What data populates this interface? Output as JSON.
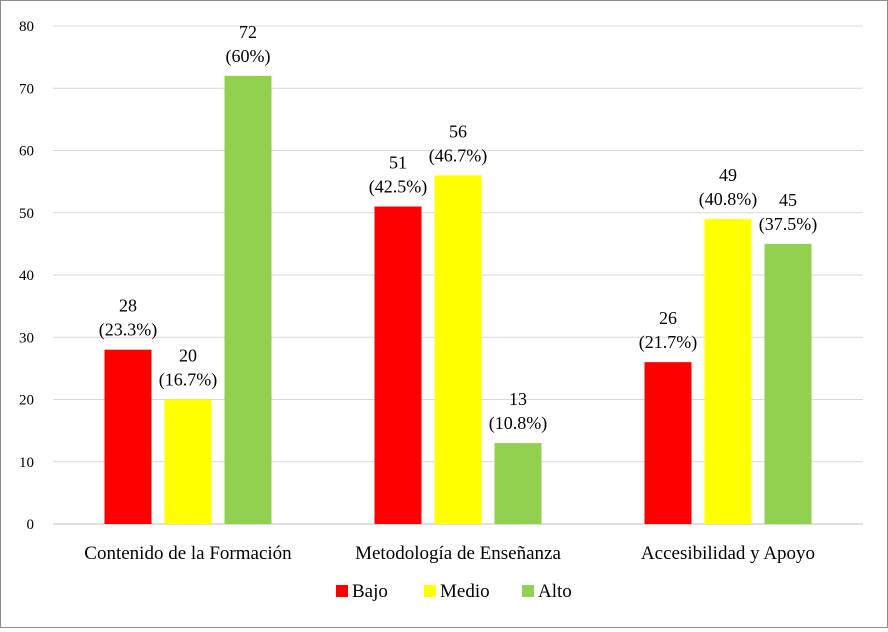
{
  "chart_data": {
    "type": "bar",
    "categories": [
      "Contenido de la Formación",
      "Metodología de Enseñanza",
      "Accesibilidad y Apoyo"
    ],
    "series": [
      {
        "name": "Bajo",
        "color": "#ff0000",
        "values": [
          28,
          51,
          26
        ],
        "labels": [
          "28",
          "51",
          "26"
        ],
        "percent_labels": [
          "(23.3%)",
          "(42.5%)",
          "(21.7%)"
        ]
      },
      {
        "name": "Medio",
        "color": "#ffff00",
        "values": [
          20,
          56,
          49
        ],
        "labels": [
          "20",
          "56",
          "49"
        ],
        "percent_labels": [
          "(16.7%)",
          "(46.7%)",
          "(40.8%)"
        ]
      },
      {
        "name": "Alto",
        "color": "#92d050",
        "values": [
          72,
          13,
          45
        ],
        "labels": [
          "72",
          "13",
          "45"
        ],
        "percent_labels": [
          "(60%)",
          "(10.8%)",
          "(37.5%)"
        ]
      }
    ],
    "ylim": [
      0,
      80
    ],
    "yticks": [
      "0",
      "10",
      "20",
      "30",
      "40",
      "50",
      "60",
      "70",
      "80"
    ],
    "grid": true,
    "legend_position": "bottom",
    "title": "",
    "xlabel": "",
    "ylabel": ""
  }
}
